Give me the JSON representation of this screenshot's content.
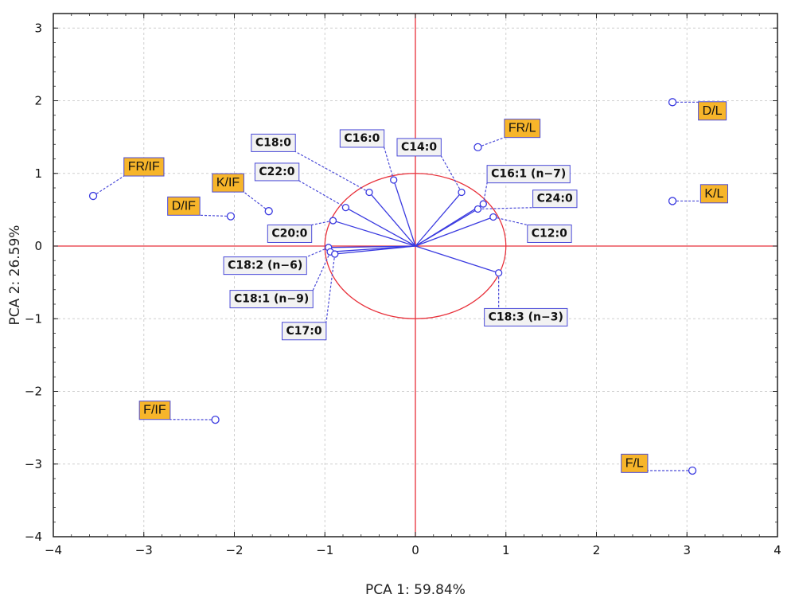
{
  "chart_data": {
    "type": "scatter",
    "title": "",
    "xlabel": "PCA 1: 59.84%",
    "ylabel": "PCA 2: 26.59%",
    "xlim": [
      -4,
      4
    ],
    "ylim": [
      -4,
      3.2
    ],
    "xticks": [
      -4,
      -3,
      -2,
      -1,
      0,
      1,
      2,
      3,
      4
    ],
    "yticks": [
      -4,
      -3,
      -2,
      -1,
      0,
      1,
      2,
      3
    ],
    "grid": true,
    "colors": {
      "vector": "#3a3ae0",
      "circle": "#e8303a",
      "axes_cross": "#e8303a",
      "sample_label_bg": "#f7b52a",
      "variable_label_bg": "#f2f2f2",
      "label_border": "#4a4ad8"
    },
    "variables": [
      {
        "name": "C18:0",
        "x": -0.51,
        "y": 0.74,
        "lx": -1.57,
        "ly": 1.42
      },
      {
        "name": "C16:0",
        "x": -0.24,
        "y": 0.91,
        "lx": -0.59,
        "ly": 1.48
      },
      {
        "name": "C14:0",
        "x": 0.51,
        "y": 0.74,
        "lx": 0.04,
        "ly": 1.36
      },
      {
        "name": "C22:0",
        "x": -0.77,
        "y": 0.53,
        "lx": -1.53,
        "ly": 1.02
      },
      {
        "name": "C16:1 (n−7)",
        "x": 0.75,
        "y": 0.58,
        "lx": 1.25,
        "ly": 0.99
      },
      {
        "name": "C24:0",
        "x": 0.69,
        "y": 0.51,
        "lx": 1.54,
        "ly": 0.65
      },
      {
        "name": "C20:0",
        "x": -0.91,
        "y": 0.35,
        "lx": -1.39,
        "ly": 0.17
      },
      {
        "name": "C12:0",
        "x": 0.86,
        "y": 0.4,
        "lx": 1.48,
        "ly": 0.17
      },
      {
        "name": "C18:2 (n−6)",
        "x": -0.96,
        "y": -0.02,
        "lx": -1.66,
        "ly": -0.27
      },
      {
        "name": "C18:1 (n−9)",
        "x": -0.94,
        "y": -0.08,
        "lx": -1.59,
        "ly": -0.73
      },
      {
        "name": "C17:0",
        "x": -0.89,
        "y": -0.11,
        "lx": -1.23,
        "ly": -1.17
      },
      {
        "name": "C18:3 (n−3)",
        "x": 0.92,
        "y": -0.37,
        "lx": 1.22,
        "ly": -0.98
      }
    ],
    "samples": [
      {
        "name": "FR/IF",
        "x": -3.56,
        "y": 0.69,
        "lx": -3.0,
        "ly": 1.09
      },
      {
        "name": "K/IF",
        "x": -1.62,
        "y": 0.48,
        "lx": -2.07,
        "ly": 0.87
      },
      {
        "name": "D/IF",
        "x": -2.04,
        "y": 0.41,
        "lx": -2.56,
        "ly": 0.55
      },
      {
        "name": "F/IF",
        "x": -2.21,
        "y": -2.39,
        "lx": -2.88,
        "ly": -2.26
      },
      {
        "name": "FR/L",
        "x": 0.69,
        "y": 1.36,
        "lx": 1.18,
        "ly": 1.62
      },
      {
        "name": "D/L",
        "x": 2.84,
        "y": 1.98,
        "lx": 3.28,
        "ly": 1.86
      },
      {
        "name": "K/L",
        "x": 2.84,
        "y": 0.62,
        "lx": 3.3,
        "ly": 0.72
      },
      {
        "name": "F/L",
        "x": 3.06,
        "y": -3.09,
        "lx": 2.42,
        "ly": -2.99
      }
    ]
  }
}
